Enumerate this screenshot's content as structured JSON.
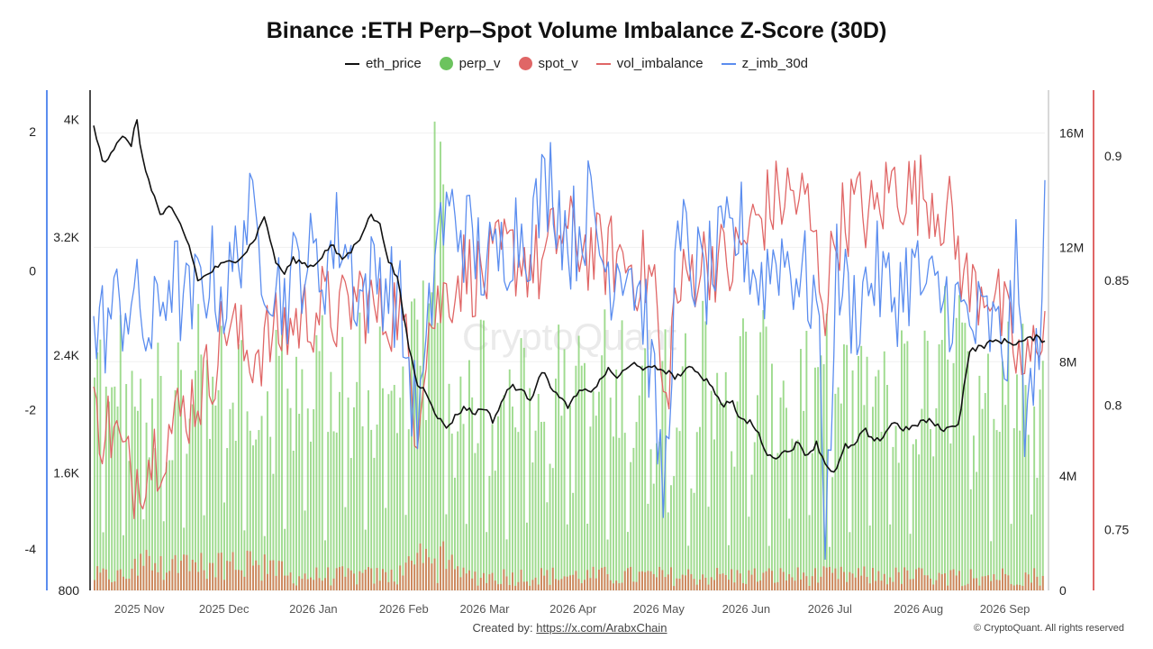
{
  "chart_data": {
    "type": "line",
    "title": "Binance :ETH Perp–Spot Volume Imbalance Z-Score (30D)",
    "legend": [
      {
        "name": "eth_price",
        "marker": "line",
        "color": "#111111"
      },
      {
        "name": "perp_v",
        "marker": "dot",
        "color": "#6cc35e"
      },
      {
        "name": "spot_v",
        "marker": "dot",
        "color": "#e06666"
      },
      {
        "name": "vol_imbalance",
        "marker": "line",
        "color": "#e06666"
      },
      {
        "name": "z_imb_30d",
        "marker": "line",
        "color": "#5b8def"
      }
    ],
    "legend_position": "top-center",
    "x_ticks": [
      "2025 Nov",
      "2025 Dec",
      "2026 Jan",
      "2026 Feb",
      "2026 Mar",
      "2026 Apr",
      "2026 May",
      "2026 Jun",
      "2026 Jul",
      "2026 Aug",
      "2026 Sep"
    ],
    "x_tick_fractions": [
      0.048,
      0.137,
      0.231,
      0.326,
      0.411,
      0.504,
      0.594,
      0.686,
      0.774,
      0.867,
      0.958
    ],
    "axes": {
      "z_imb_30d": {
        "side": "left-outer",
        "range": [
          -4.6,
          2.6
        ],
        "ticks": [
          "2",
          "0",
          "-2",
          "-4"
        ],
        "tick_values": [
          2,
          0,
          -2,
          -4
        ],
        "color": "#5b8def"
      },
      "eth_price": {
        "side": "left-inner",
        "range": [
          800,
          4200
        ],
        "ticks": [
          "4K",
          "3.2K",
          "2.4K",
          "1.6K",
          "800"
        ],
        "tick_values": [
          4000,
          3200,
          2400,
          1600,
          800
        ],
        "color": "#111111"
      },
      "volume": {
        "side": "right-inner",
        "range": [
          0,
          17500000
        ],
        "ticks": [
          "16M",
          "12M",
          "8M",
          "4M",
          "0"
        ],
        "tick_values": [
          16000000,
          12000000,
          8000000,
          4000000,
          0
        ],
        "color": "#cccccc"
      },
      "vol_imbalance": {
        "side": "right-outer",
        "range": [
          0.7255,
          0.9265
        ],
        "ticks": [
          "0.9",
          "0.85",
          "0.8",
          "0.75"
        ],
        "tick_values": [
          0.9,
          0.85,
          0.8,
          0.75
        ],
        "color": "#e06666"
      }
    },
    "grid": true,
    "series": {
      "eth_price_anchors": [
        [
          0.0,
          3950
        ],
        [
          0.01,
          3700
        ],
        [
          0.03,
          3900
        ],
        [
          0.04,
          3800
        ],
        [
          0.045,
          4050
        ],
        [
          0.05,
          3750
        ],
        [
          0.07,
          3350
        ],
        [
          0.08,
          3400
        ],
        [
          0.09,
          3300
        ],
        [
          0.1,
          3150
        ],
        [
          0.11,
          2900
        ],
        [
          0.13,
          3000
        ],
        [
          0.15,
          3050
        ],
        [
          0.16,
          3100
        ],
        [
          0.17,
          3200
        ],
        [
          0.18,
          3350
        ],
        [
          0.19,
          3050
        ],
        [
          0.2,
          2950
        ],
        [
          0.21,
          3050
        ],
        [
          0.23,
          3000
        ],
        [
          0.25,
          3150
        ],
        [
          0.26,
          3050
        ],
        [
          0.27,
          3100
        ],
        [
          0.28,
          3200
        ],
        [
          0.29,
          3350
        ],
        [
          0.3,
          3300
        ],
        [
          0.31,
          3050
        ],
        [
          0.32,
          2900
        ],
        [
          0.33,
          2500
        ],
        [
          0.34,
          2200
        ],
        [
          0.35,
          2150
        ],
        [
          0.36,
          2000
        ],
        [
          0.37,
          1900
        ],
        [
          0.38,
          1980
        ],
        [
          0.39,
          2050
        ],
        [
          0.4,
          2000
        ],
        [
          0.41,
          2050
        ],
        [
          0.42,
          1950
        ],
        [
          0.43,
          2100
        ],
        [
          0.44,
          2200
        ],
        [
          0.46,
          2100
        ],
        [
          0.47,
          2300
        ],
        [
          0.48,
          2200
        ],
        [
          0.49,
          2100
        ],
        [
          0.5,
          2050
        ],
        [
          0.51,
          2150
        ],
        [
          0.52,
          2150
        ],
        [
          0.53,
          2200
        ],
        [
          0.54,
          2300
        ],
        [
          0.55,
          2250
        ],
        [
          0.56,
          2300
        ],
        [
          0.57,
          2350
        ],
        [
          0.58,
          2300
        ],
        [
          0.59,
          2310
        ],
        [
          0.6,
          2300
        ],
        [
          0.61,
          2250
        ],
        [
          0.62,
          2280
        ],
        [
          0.63,
          2320
        ],
        [
          0.64,
          2250
        ],
        [
          0.65,
          2200
        ],
        [
          0.66,
          2050
        ],
        [
          0.67,
          2100
        ],
        [
          0.68,
          1950
        ],
        [
          0.69,
          1950
        ],
        [
          0.7,
          1850
        ],
        [
          0.71,
          1700
        ],
        [
          0.72,
          1720
        ],
        [
          0.73,
          1750
        ],
        [
          0.74,
          1800
        ],
        [
          0.75,
          1720
        ],
        [
          0.76,
          1800
        ],
        [
          0.77,
          1650
        ],
        [
          0.78,
          1600
        ],
        [
          0.79,
          1780
        ],
        [
          0.8,
          1780
        ],
        [
          0.81,
          1900
        ],
        [
          0.82,
          1800
        ],
        [
          0.83,
          1850
        ],
        [
          0.84,
          1950
        ],
        [
          0.85,
          1900
        ],
        [
          0.86,
          1900
        ],
        [
          0.87,
          1950
        ],
        [
          0.88,
          1950
        ],
        [
          0.89,
          1900
        ],
        [
          0.9,
          1900
        ],
        [
          0.91,
          1950
        ],
        [
          0.92,
          2420
        ],
        [
          0.93,
          2450
        ],
        [
          0.95,
          2500
        ],
        [
          0.97,
          2480
        ],
        [
          0.99,
          2520
        ],
        [
          1.0,
          2500
        ]
      ],
      "z_imb_30d_anchors": [
        [
          0.0,
          -1.0
        ],
        [
          0.02,
          -0.6
        ],
        [
          0.04,
          -0.4
        ],
        [
          0.06,
          -1.0
        ],
        [
          0.08,
          0.0
        ],
        [
          0.1,
          -0.6
        ],
        [
          0.12,
          0.0
        ],
        [
          0.14,
          -0.4
        ],
        [
          0.16,
          0.8
        ],
        [
          0.18,
          0.2
        ],
        [
          0.2,
          -0.4
        ],
        [
          0.22,
          0.2
        ],
        [
          0.24,
          0.0
        ],
        [
          0.26,
          0.6
        ],
        [
          0.28,
          -0.4
        ],
        [
          0.3,
          0.0
        ],
        [
          0.32,
          -0.4
        ],
        [
          0.34,
          -2.2
        ],
        [
          0.35,
          -1.4
        ],
        [
          0.36,
          0.6
        ],
        [
          0.38,
          0.8
        ],
        [
          0.4,
          0.3
        ],
        [
          0.42,
          0.0
        ],
        [
          0.44,
          0.6
        ],
        [
          0.46,
          0.6
        ],
        [
          0.48,
          1.4
        ],
        [
          0.5,
          0.4
        ],
        [
          0.52,
          0.9
        ],
        [
          0.54,
          0.0
        ],
        [
          0.56,
          0.3
        ],
        [
          0.58,
          -0.6
        ],
        [
          0.6,
          -3.4
        ],
        [
          0.61,
          -0.2
        ],
        [
          0.62,
          0.4
        ],
        [
          0.64,
          -0.2
        ],
        [
          0.66,
          0.2
        ],
        [
          0.68,
          0.6
        ],
        [
          0.7,
          -0.2
        ],
        [
          0.72,
          0.3
        ],
        [
          0.74,
          0.0
        ],
        [
          0.76,
          -0.4
        ],
        [
          0.77,
          -3.9
        ],
        [
          0.78,
          0.0
        ],
        [
          0.8,
          -0.6
        ],
        [
          0.82,
          0.0
        ],
        [
          0.84,
          -0.4
        ],
        [
          0.86,
          0.0
        ],
        [
          0.88,
          -0.4
        ],
        [
          0.9,
          -0.4
        ],
        [
          0.92,
          -0.8
        ],
        [
          0.94,
          -0.8
        ],
        [
          0.96,
          -1.2
        ],
        [
          0.97,
          0.0
        ],
        [
          0.98,
          -2.2
        ],
        [
          0.99,
          -1.6
        ],
        [
          1.0,
          0.6
        ]
      ],
      "vol_imbalance_anchors": [
        [
          0.0,
          0.795
        ],
        [
          0.02,
          0.79
        ],
        [
          0.04,
          0.77
        ],
        [
          0.06,
          0.78
        ],
        [
          0.08,
          0.79
        ],
        [
          0.1,
          0.8
        ],
        [
          0.12,
          0.81
        ],
        [
          0.14,
          0.835
        ],
        [
          0.16,
          0.82
        ],
        [
          0.18,
          0.825
        ],
        [
          0.2,
          0.83
        ],
        [
          0.22,
          0.835
        ],
        [
          0.24,
          0.84
        ],
        [
          0.26,
          0.835
        ],
        [
          0.28,
          0.845
        ],
        [
          0.3,
          0.835
        ],
        [
          0.32,
          0.84
        ],
        [
          0.34,
          0.795
        ],
        [
          0.35,
          0.83
        ],
        [
          0.37,
          0.845
        ],
        [
          0.39,
          0.855
        ],
        [
          0.41,
          0.85
        ],
        [
          0.43,
          0.86
        ],
        [
          0.45,
          0.86
        ],
        [
          0.47,
          0.855
        ],
        [
          0.49,
          0.87
        ],
        [
          0.51,
          0.865
        ],
        [
          0.53,
          0.86
        ],
        [
          0.55,
          0.86
        ],
        [
          0.57,
          0.855
        ],
        [
          0.59,
          0.85
        ],
        [
          0.6,
          0.79
        ],
        [
          0.61,
          0.84
        ],
        [
          0.63,
          0.855
        ],
        [
          0.65,
          0.86
        ],
        [
          0.67,
          0.855
        ],
        [
          0.69,
          0.87
        ],
        [
          0.71,
          0.88
        ],
        [
          0.73,
          0.885
        ],
        [
          0.75,
          0.88
        ],
        [
          0.77,
          0.84
        ],
        [
          0.78,
          0.87
        ],
        [
          0.8,
          0.88
        ],
        [
          0.82,
          0.875
        ],
        [
          0.84,
          0.89
        ],
        [
          0.86,
          0.885
        ],
        [
          0.88,
          0.885
        ],
        [
          0.9,
          0.875
        ],
        [
          0.92,
          0.845
        ],
        [
          0.94,
          0.85
        ],
        [
          0.96,
          0.83
        ],
        [
          0.98,
          0.81
        ],
        [
          1.0,
          0.84
        ]
      ],
      "perp_v_note": "daily green volume bars mostly 4M–10M with peaks near 16M around 2026 Feb",
      "spot_v_note": "daily red volume bars mostly under 1.5M"
    }
  },
  "watermark": "CryptoQuant",
  "footer": {
    "created_by": "Created by:",
    "link_text": "https://x.com/ArabxChain",
    "copyright": "© CryptoQuant. All rights reserved"
  }
}
